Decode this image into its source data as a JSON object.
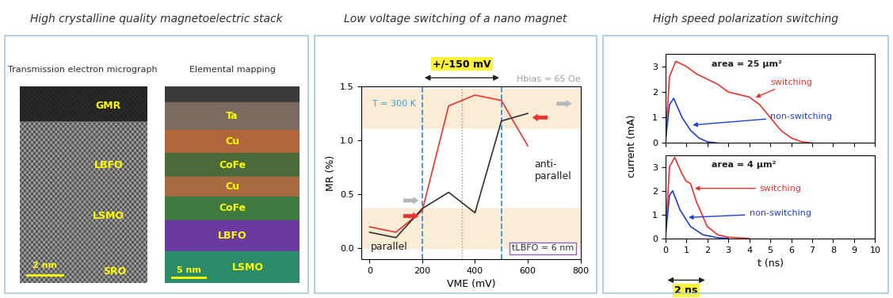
{
  "panel_titles": [
    "High crystalline quality magnetoelectric stack",
    "Low voltage switching of a nano magnet",
    "High speed polarization switching"
  ],
  "images": [
    {
      "title": "Transmission electron micrograph",
      "labels": [
        "GMR",
        "LBFO",
        "LSMO",
        "SRO"
      ],
      "scale_bar": "2 nm"
    },
    {
      "title": "Elemental mapping",
      "layers": [
        "Ta",
        "Cu",
        "CoFe",
        "Cu",
        "CoFe",
        "LBFO",
        "LSMO"
      ],
      "scale_bar": "5 nm"
    }
  ],
  "chart_data": [
    {
      "type": "line",
      "xlabel": "VME (mV)",
      "ylabel": "MR (%)",
      "x": [
        0,
        100,
        200,
        300,
        400,
        500,
        600
      ],
      "xlim": [
        -30,
        800
      ],
      "xticks": [
        0,
        200,
        400,
        600,
        800
      ],
      "ylim": [
        -0.1,
        1.5
      ],
      "yticks": [
        {
          "value": 0,
          "label": "0.0"
        },
        {
          "value": 0.5,
          "label": "0.5"
        },
        {
          "value": 1.0,
          "label": "1.0"
        },
        {
          "value": 1.5,
          "label": "1.5"
        }
      ],
      "series": [
        {
          "color": "#e8332f",
          "values": [
            0.2,
            0.15,
            0.35,
            1.32,
            1.42,
            1.37,
            0.95
          ]
        },
        {
          "color": "#303030",
          "values": [
            0.15,
            0.1,
            0.37,
            0.52,
            0.33,
            1.18,
            1.25
          ]
        }
      ],
      "annotations": [
        "T = 300 K",
        "Hbias = 65 Oe",
        "tLBFO = 6 nm",
        "parallel",
        "anti-\nparallel"
      ],
      "voltage_window": {
        "label": "+/-150 mV",
        "range": [
          200,
          500
        ]
      },
      "center_line": 350,
      "bands": [
        [
          0,
          0.37
        ],
        [
          1.12,
          1.48
        ]
      ]
    },
    {
      "type": "line",
      "ylabel": "current (mA)",
      "tick_labels": "y",
      "xlim": [
        0,
        10
      ],
      "xticks": [
        0,
        1,
        2,
        3,
        4,
        5,
        6,
        7,
        8,
        9,
        10
      ],
      "ylim": [
        0,
        3.5
      ],
      "yticks": [
        0,
        1,
        2,
        3
      ],
      "series": [
        {
          "name": "switching",
          "color": "#e8332f",
          "x": [
            0,
            0.2,
            0.5,
            1,
            1.5,
            2,
            2.5,
            3,
            3.5,
            4,
            4.5,
            5,
            5.5,
            6,
            6.5,
            7
          ],
          "values": [
            0,
            2.6,
            3.2,
            3.0,
            2.7,
            2.5,
            2.3,
            2.0,
            1.9,
            1.8,
            1.5,
            1.0,
            0.5,
            0.2,
            0.05,
            0
          ]
        },
        {
          "name": "non-switching",
          "color": "#2040d0",
          "x": [
            0,
            0.2,
            0.4,
            0.8,
            1.2,
            1.6,
            2.0,
            2.5
          ],
          "values": [
            0,
            1.5,
            1.75,
            1.0,
            0.5,
            0.2,
            0.05,
            0
          ]
        }
      ],
      "annotations": [
        "area = 25 μm²"
      ]
    },
    {
      "type": "line",
      "xlabel": "t (ns)",
      "xlim": [
        0,
        10
      ],
      "xticks": [
        0,
        1,
        2,
        3,
        4,
        5,
        6,
        7,
        8,
        9,
        10
      ],
      "ylim": [
        0,
        3.5
      ],
      "yticks": [
        0,
        1,
        2,
        3
      ],
      "series": [
        {
          "name": "switching",
          "color": "#e8332f",
          "x": [
            0,
            0.2,
            0.45,
            0.8,
            1.0,
            1.2,
            1.5,
            2,
            2.5,
            3,
            4
          ],
          "values": [
            0,
            3.0,
            3.4,
            2.7,
            2.4,
            2.3,
            1.5,
            0.5,
            0.15,
            0.05,
            0
          ]
        },
        {
          "name": "non-switching",
          "color": "#2040d0",
          "x": [
            0,
            0.2,
            0.35,
            0.7,
            1.2,
            1.8,
            2.5,
            3
          ],
          "values": [
            0,
            1.8,
            2.0,
            1.2,
            0.5,
            0.15,
            0.03,
            0
          ]
        }
      ],
      "annotations": [
        "area = 4 μm²"
      ],
      "time_marker": {
        "label": "2 ns",
        "range": [
          0,
          2
        ]
      }
    }
  ]
}
